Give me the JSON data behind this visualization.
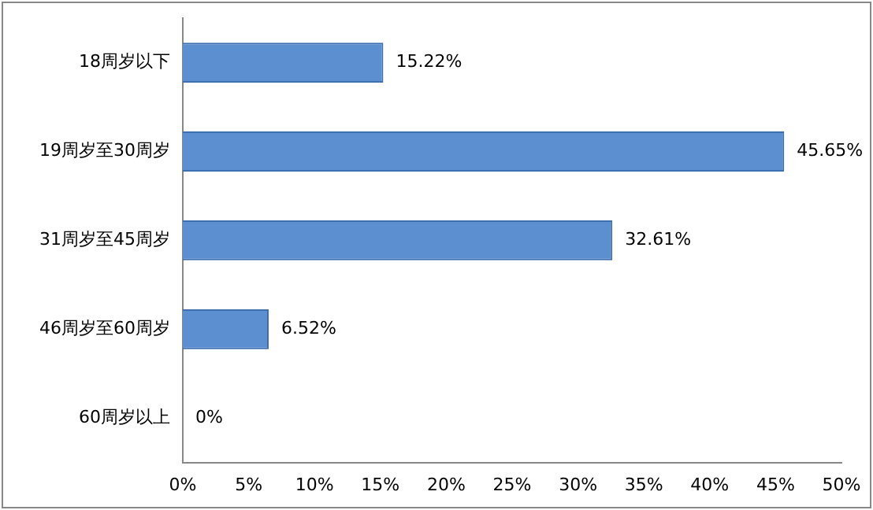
{
  "chart_data": {
    "type": "bar",
    "orientation": "horizontal",
    "categories": [
      "18周岁以下",
      "19周岁至30周岁",
      "31周岁至45周岁",
      "46周岁至60周岁",
      "60周岁以上"
    ],
    "values": [
      15.22,
      45.65,
      32.61,
      6.52,
      0
    ],
    "value_labels": [
      "15.22%",
      "45.65%",
      "32.61%",
      "6.52%",
      "0%"
    ],
    "color": "#5b8fd0",
    "xlim": [
      0,
      50
    ],
    "xticks": [
      {
        "value": 0,
        "label": "0%"
      },
      {
        "value": 5,
        "label": "5%"
      },
      {
        "value": 10,
        "label": "10%"
      },
      {
        "value": 15,
        "label": "15%"
      },
      {
        "value": 20,
        "label": "20%"
      },
      {
        "value": 25,
        "label": "25%"
      },
      {
        "value": 30,
        "label": "30%"
      },
      {
        "value": 35,
        "label": "35%"
      },
      {
        "value": 40,
        "label": "40%"
      },
      {
        "value": 45,
        "label": "45%"
      },
      {
        "value": 50,
        "label": "50%"
      }
    ],
    "grid": false,
    "legend": false
  }
}
